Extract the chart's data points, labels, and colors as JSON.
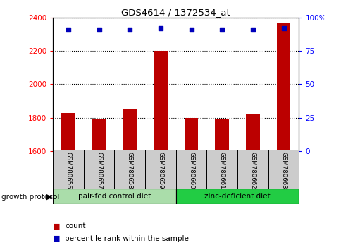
{
  "title": "GDS4614 / 1372534_at",
  "samples": [
    "GSM780656",
    "GSM780657",
    "GSM780658",
    "GSM780659",
    "GSM780660",
    "GSM780661",
    "GSM780662",
    "GSM780663"
  ],
  "counts": [
    1830,
    1795,
    1850,
    2200,
    1800,
    1795,
    1820,
    2370
  ],
  "percentiles": [
    91,
    91,
    91,
    92,
    91,
    91,
    91,
    92
  ],
  "ylim_left": [
    1600,
    2400
  ],
  "ylim_right": [
    0,
    100
  ],
  "yticks_left": [
    1600,
    1800,
    2000,
    2200,
    2400
  ],
  "yticks_right": [
    0,
    25,
    50,
    75,
    100
  ],
  "ytick_labels_right": [
    "0",
    "25",
    "50",
    "75",
    "100%"
  ],
  "bar_color": "#bb0000",
  "dot_color": "#0000bb",
  "group1_label": "pair-fed control diet",
  "group2_label": "zinc-deficient diet",
  "group1_color": "#aaddaa",
  "group2_color": "#22cc44",
  "protocol_label": "growth protocol",
  "legend_count_label": "count",
  "legend_percentile_label": "percentile rank within the sample",
  "group1_samples": [
    0,
    1,
    2,
    3
  ],
  "group2_samples": [
    4,
    5,
    6,
    7
  ],
  "label_bg_color": "#cccccc",
  "fig_width": 4.85,
  "fig_height": 3.54,
  "dpi": 100
}
